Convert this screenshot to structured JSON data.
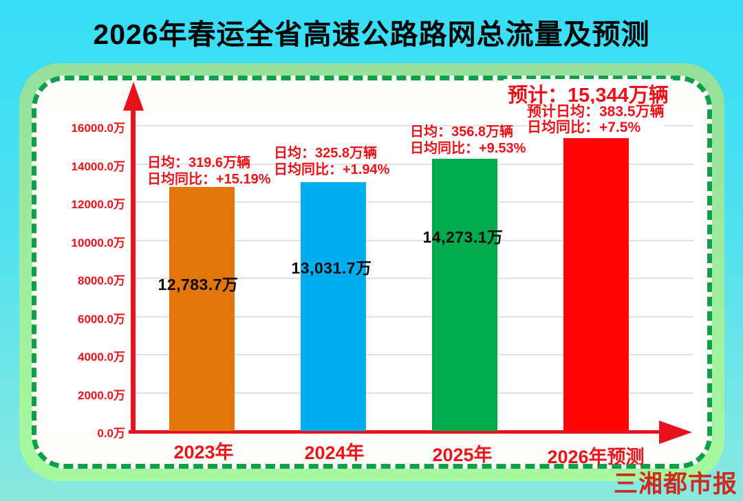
{
  "title": "2026年春运全省高速公路路网总流量及预测",
  "watermark": "三湘都市报",
  "colors": {
    "background_top": "#36DDF6",
    "background_bottom": "#8AE9DF",
    "panel_green": "#9BE79D",
    "dashed_border_green": "#0E9F4B",
    "axis_red": "#E8121C",
    "text_red": "#EE1218",
    "gridline": "#E2E2E2",
    "bar_2023": "#E2750B",
    "bar_2024": "#00AEEF",
    "bar_2025": "#00AB4E",
    "bar_2026": "#FF0505"
  },
  "chart_data": {
    "type": "bar",
    "title": "2026年春运全省高速公路路网总流量及预测",
    "categories": [
      "2023年",
      "2024年",
      "2025年",
      "2026年预测"
    ],
    "values": [
      12783.7,
      13031.7,
      14273.1,
      15344
    ],
    "unit": "万",
    "ylim": [
      0,
      16000
    ],
    "yticks": [
      16000,
      14000,
      12000,
      10000,
      8000,
      6000,
      4000,
      2000,
      0
    ],
    "ytick_labels": [
      "16000.0万",
      "14000.0万",
      "12000.0万",
      "10000.0万",
      "8000.0万",
      "6000.0万",
      "4000.0万",
      "2000.0万",
      "0.0万"
    ],
    "bar_colors": [
      "#E2750B",
      "#00AEEF",
      "#00AB4E",
      "#FF0505"
    ],
    "value_labels": [
      "12,783.7万",
      "13,031.7万",
      "14,273.1万"
    ],
    "grid": "horizontal",
    "legend": "none",
    "annotations": {
      "y2023": {
        "line1": "日均：319.6万辆",
        "line2": "日均同比：+15.19%"
      },
      "y2024": {
        "line1": "日均：325.8万辆",
        "line2": "日均同比：+1.94%"
      },
      "y2025": {
        "line1": "日均：356.8万辆",
        "line2": "日均同比：+9.53%"
      },
      "y2026": {
        "headline": "预计：15,344万辆",
        "line1": "预计日均：383.5万辆",
        "line2": "日均同比：+7.5%"
      }
    }
  }
}
